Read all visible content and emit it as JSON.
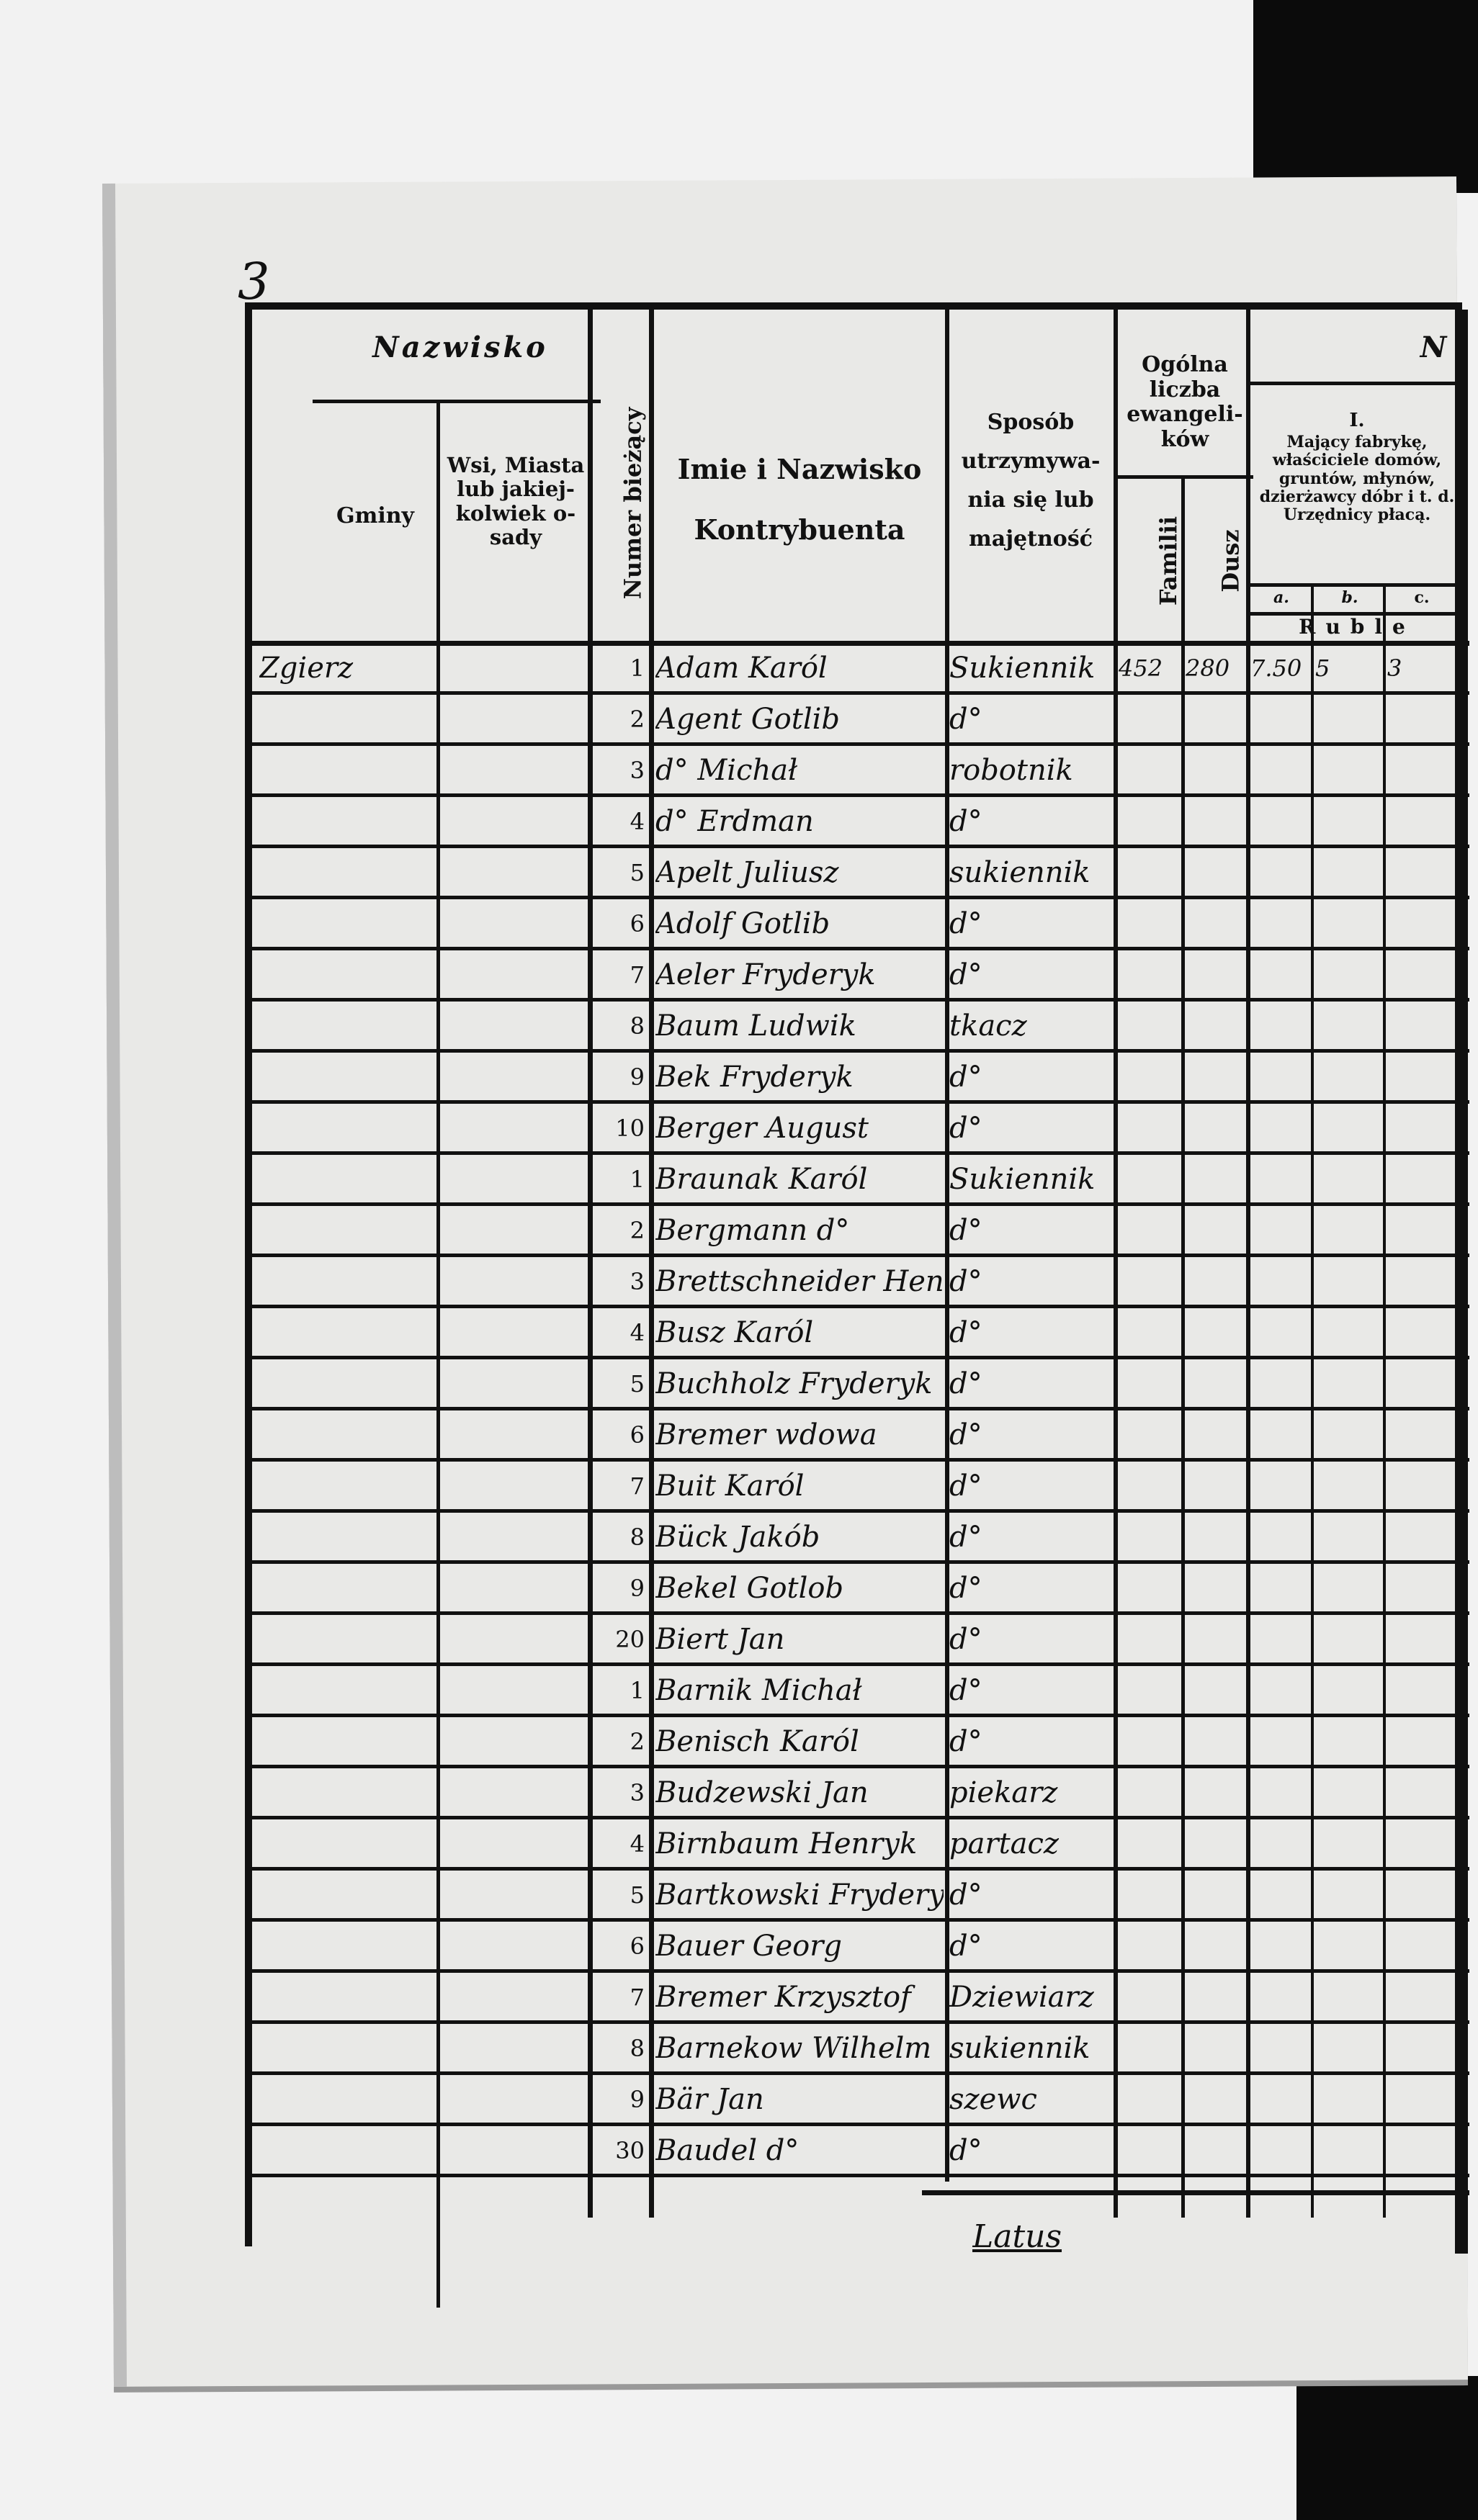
{
  "header": {
    "nazwisko": "Nazwisko",
    "gminy": "Gminy",
    "wsi": "Wsi, Miasta lub jakiej-kolwiek o-sady",
    "numer": "Numer bieżący",
    "imie": "Imie i Nazwisko Kontrybuenta",
    "sposob": "Sposób utrzymywa-nia się lub majętność",
    "ogolna": "Ogólna liczba ewangeli-ków",
    "familii": "Familii",
    "dusz": "Dusz",
    "section_letter": "N",
    "class_number": "I.",
    "class_desc": "Mający fabrykę, właściciele domów, gruntów, młynów, dzierżawcy dóbr i t. d. Urzędnicy płacą.",
    "sub_a": "a.",
    "sub_b": "b.",
    "sub_c": "c.",
    "currency": "Ruble"
  },
  "gmina": "Zgierz",
  "rows": [
    {
      "n": "1",
      "name": "Adam Karól",
      "occ": "Sukiennik",
      "fam": "452",
      "dusz": "280",
      "a": "7.50",
      "b": "5",
      "c": "3"
    },
    {
      "n": "2",
      "name": "Agent Gotlib",
      "occ": "d°"
    },
    {
      "n": "3",
      "name": "d° Michał",
      "occ": "robotnik"
    },
    {
      "n": "4",
      "name": "d° Erdman",
      "occ": "d°"
    },
    {
      "n": "5",
      "name": "Apelt Juliusz",
      "occ": "sukiennik"
    },
    {
      "n": "6",
      "name": "Adolf Gotlib",
      "occ": "d°"
    },
    {
      "n": "7",
      "name": "Aeler Fryderyk",
      "occ": "d°"
    },
    {
      "n": "8",
      "name": "Baum Ludwik",
      "occ": "tkacz"
    },
    {
      "n": "9",
      "name": "Bek Fryderyk",
      "occ": "d°"
    },
    {
      "n": "10",
      "name": "Berger August",
      "occ": "d°"
    },
    {
      "n": "1",
      "name": "Braunak Karól",
      "occ": "Sukiennik"
    },
    {
      "n": "2",
      "name": "Bergmann d°",
      "occ": "d°"
    },
    {
      "n": "3",
      "name": "Brettschneider Henryk",
      "occ": "d°"
    },
    {
      "n": "4",
      "name": "Busz Karól",
      "occ": "d°"
    },
    {
      "n": "5",
      "name": "Buchholz Fryderyk",
      "occ": "d°"
    },
    {
      "n": "6",
      "name": "Bremer wdowa",
      "occ": "d°"
    },
    {
      "n": "7",
      "name": "Buit Karól",
      "occ": "d°"
    },
    {
      "n": "8",
      "name": "Bück Jakób",
      "occ": "d°"
    },
    {
      "n": "9",
      "name": "Bekel Gotlob",
      "occ": "d°"
    },
    {
      "n": "20",
      "name": "Biert Jan",
      "occ": "d°"
    },
    {
      "n": "1",
      "name": "Barnik Michał",
      "occ": "d°"
    },
    {
      "n": "2",
      "name": "Benisch Karól",
      "occ": "d°"
    },
    {
      "n": "3",
      "name": "Budzewski Jan",
      "occ": "piekarz"
    },
    {
      "n": "4",
      "name": "Birnbaum Henryk",
      "occ": "partacz"
    },
    {
      "n": "5",
      "name": "Bartkowski Fryderyk",
      "occ": "d°"
    },
    {
      "n": "6",
      "name": "Bauer Georg",
      "occ": "d°"
    },
    {
      "n": "7",
      "name": "Bremer Krzysztof",
      "occ": "Dziewiarz"
    },
    {
      "n": "8",
      "name": "Barnekow Wilhelm",
      "occ": "sukiennik"
    },
    {
      "n": "9",
      "name": "Bär Jan",
      "occ": "szewc"
    },
    {
      "n": "30",
      "name": "Baudel d°",
      "occ": "d°"
    }
  ],
  "footer": {
    "latus": "Latus"
  },
  "margin_mark": "3"
}
